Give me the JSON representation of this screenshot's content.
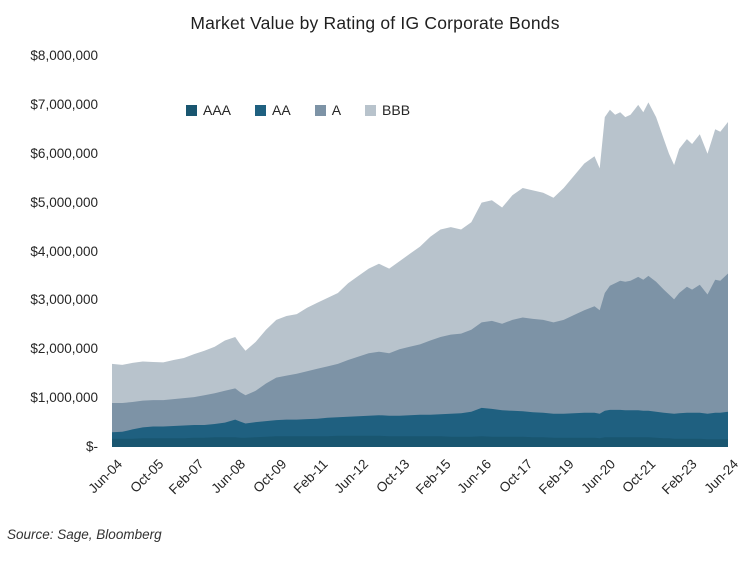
{
  "title": "Market Value by Rating of IG Corporate Bonds",
  "source_note": "Source: Sage, Bloomberg",
  "chart_data": {
    "type": "area",
    "stacked": true,
    "title": "Market Value by Rating of IG Corporate Bonds",
    "xlabel": "",
    "ylabel": "",
    "grid": false,
    "legend_position": "top-inside",
    "ylim": [
      0,
      8000000
    ],
    "y_tick_labels": [
      "$8,000,000",
      "$7,000,000",
      "$6,000,000",
      "$5,000,000",
      "$4,000,000",
      "$3,000,000",
      "$2,000,000",
      "$1,000,000",
      "$-"
    ],
    "x_unit": "months since Jun-2004",
    "x_ticks": [
      {
        "label": "Jun-04",
        "month": 0
      },
      {
        "label": "Oct-05",
        "month": 16
      },
      {
        "label": "Feb-07",
        "month": 32
      },
      {
        "label": "Jun-08",
        "month": 48
      },
      {
        "label": "Oct-09",
        "month": 64
      },
      {
        "label": "Feb-11",
        "month": 80
      },
      {
        "label": "Jun-12",
        "month": 96
      },
      {
        "label": "Oct-13",
        "month": 112
      },
      {
        "label": "Feb-15",
        "month": 128
      },
      {
        "label": "Jun-16",
        "month": 144
      },
      {
        "label": "Oct-17",
        "month": 160
      },
      {
        "label": "Feb-19",
        "month": 176
      },
      {
        "label": "Jun-20",
        "month": 192
      },
      {
        "label": "Oct-21",
        "month": 208
      },
      {
        "label": "Feb-23",
        "month": 224
      },
      {
        "label": "Jun-24",
        "month": 240
      }
    ],
    "x_months": [
      0,
      4,
      8,
      12,
      16,
      20,
      24,
      28,
      32,
      36,
      40,
      44,
      48,
      50,
      52,
      56,
      60,
      64,
      68,
      72,
      76,
      80,
      84,
      88,
      92,
      96,
      100,
      104,
      108,
      112,
      116,
      120,
      124,
      128,
      132,
      136,
      140,
      144,
      148,
      152,
      156,
      160,
      164,
      168,
      172,
      176,
      180,
      184,
      188,
      190,
      192,
      194,
      196,
      198,
      200,
      202,
      205,
      207,
      209,
      212,
      215,
      217,
      219,
      221,
      224,
      226,
      229,
      232,
      235,
      237,
      240
    ],
    "series": [
      {
        "name": "AAA",
        "color": "#195670",
        "values": [
          170000,
          170000,
          170000,
          180000,
          180000,
          180000,
          180000,
          180000,
          190000,
          190000,
          200000,
          200000,
          200000,
          190000,
          190000,
          200000,
          210000,
          220000,
          220000,
          220000,
          220000,
          220000,
          220000,
          230000,
          230000,
          230000,
          230000,
          230000,
          220000,
          220000,
          220000,
          220000,
          220000,
          220000,
          210000,
          210000,
          210000,
          220000,
          210000,
          210000,
          210000,
          210000,
          200000,
          200000,
          190000,
          190000,
          190000,
          190000,
          190000,
          180000,
          200000,
          200000,
          200000,
          200000,
          200000,
          200000,
          200000,
          200000,
          200000,
          190000,
          180000,
          180000,
          170000,
          170000,
          170000,
          170000,
          170000,
          160000,
          160000,
          160000,
          160000
        ]
      },
      {
        "name": "AA",
        "color": "#1f6080",
        "values": [
          130000,
          140000,
          190000,
          220000,
          240000,
          240000,
          250000,
          260000,
          260000,
          260000,
          270000,
          300000,
          360000,
          330000,
          290000,
          310000,
          320000,
          330000,
          340000,
          340000,
          350000,
          360000,
          380000,
          380000,
          390000,
          400000,
          410000,
          420000,
          420000,
          420000,
          430000,
          440000,
          440000,
          450000,
          470000,
          480000,
          510000,
          580000,
          570000,
          540000,
          530000,
          520000,
          510000,
          500000,
          490000,
          490000,
          500000,
          510000,
          510000,
          500000,
          540000,
          560000,
          560000,
          560000,
          550000,
          550000,
          550000,
          540000,
          540000,
          530000,
          520000,
          510000,
          510000,
          520000,
          530000,
          530000,
          530000,
          520000,
          540000,
          540000,
          560000
        ]
      },
      {
        "name": "A",
        "color": "#7d93a6",
        "values": [
          600000,
          590000,
          560000,
          550000,
          540000,
          540000,
          550000,
          560000,
          570000,
          610000,
          630000,
          650000,
          640000,
          600000,
          580000,
          640000,
          770000,
          870000,
          900000,
          940000,
          980000,
          1020000,
          1050000,
          1090000,
          1160000,
          1220000,
          1280000,
          1300000,
          1280000,
          1360000,
          1400000,
          1440000,
          1520000,
          1580000,
          1620000,
          1630000,
          1680000,
          1750000,
          1800000,
          1770000,
          1860000,
          1920000,
          1910000,
          1900000,
          1870000,
          1920000,
          2010000,
          2100000,
          2180000,
          2120000,
          2410000,
          2540000,
          2590000,
          2640000,
          2630000,
          2650000,
          2730000,
          2680000,
          2760000,
          2660000,
          2520000,
          2430000,
          2340000,
          2460000,
          2580000,
          2520000,
          2620000,
          2440000,
          2720000,
          2700000,
          2830000
        ]
      },
      {
        "name": "BBB",
        "color": "#b8c3cc",
        "values": [
          800000,
          780000,
          800000,
          800000,
          780000,
          770000,
          800000,
          820000,
          880000,
          910000,
          950000,
          1030000,
          1050000,
          980000,
          910000,
          1000000,
          1100000,
          1180000,
          1220000,
          1220000,
          1300000,
          1350000,
          1400000,
          1450000,
          1570000,
          1650000,
          1730000,
          1800000,
          1730000,
          1800000,
          1900000,
          2000000,
          2120000,
          2200000,
          2200000,
          2130000,
          2200000,
          2450000,
          2470000,
          2380000,
          2550000,
          2650000,
          2630000,
          2600000,
          2550000,
          2700000,
          2850000,
          3000000,
          3070000,
          2900000,
          3600000,
          3600000,
          3450000,
          3450000,
          3370000,
          3400000,
          3520000,
          3430000,
          3550000,
          3370000,
          3080000,
          2880000,
          2750000,
          2950000,
          3020000,
          2980000,
          3080000,
          2880000,
          3080000,
          3050000,
          3100000
        ]
      }
    ]
  }
}
